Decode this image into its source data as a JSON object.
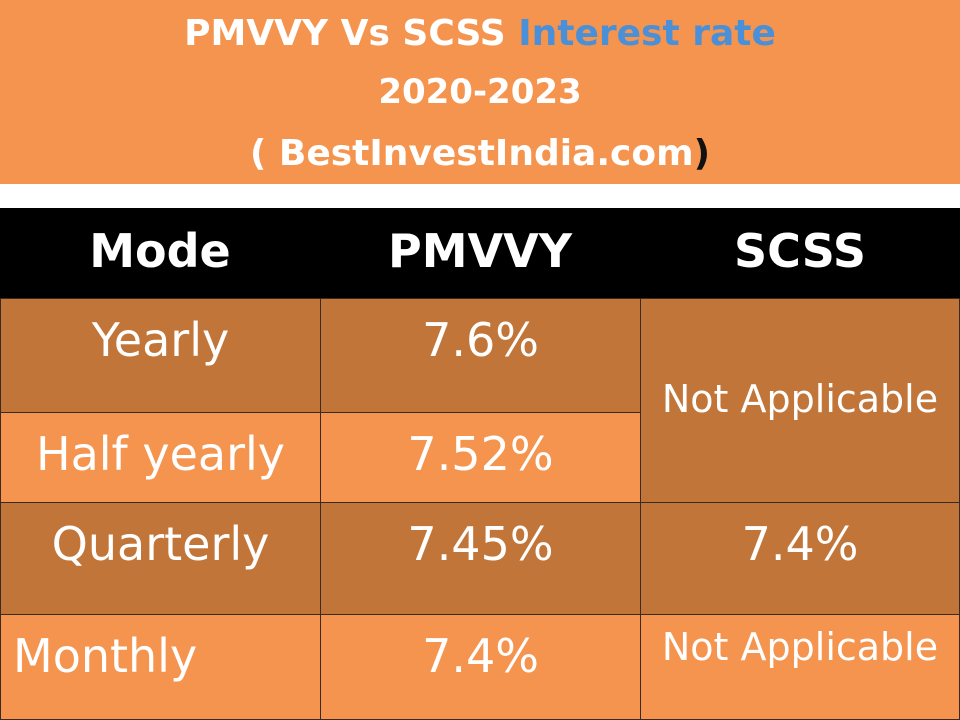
{
  "banner": {
    "title_part1": "PMVVY  Vs  SCSS ",
    "title_part2": "Interest rate",
    "years": "2020-2023",
    "source_open": "( BestInvestIndia.com",
    "source_close": ")"
  },
  "table": {
    "headers": [
      "Mode",
      "PMVVY",
      "SCSS"
    ],
    "rows": [
      {
        "mode": "Yearly",
        "pmvvy": "7.6%",
        "scss": "Not Applicable"
      },
      {
        "mode": "Half yearly",
        "pmvvy": "7.52%",
        "scss": "Not Applicable"
      },
      {
        "mode": "Quarterly",
        "pmvvy": "7.45%",
        "scss": "7.4%"
      },
      {
        "mode": "Monthly",
        "pmvvy": "7.4%",
        "scss": "Not Applicable"
      }
    ]
  },
  "colors": {
    "orange_light": "#f5944e",
    "orange_dark": "#c27538",
    "accent_blue": "#4a90d9",
    "header_bg": "#000000"
  }
}
